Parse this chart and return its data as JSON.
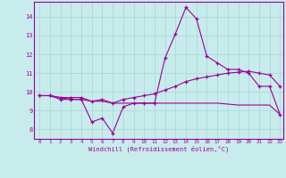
{
  "xlabel": "Windchill (Refroidissement éolien,°C)",
  "background_color": "#c8ecec",
  "grid_color": "#aed8d8",
  "line_color": "#990099",
  "xlim": [
    -0.5,
    23.3
  ],
  "ylim": [
    7.5,
    14.8
  ],
  "yticks": [
    8,
    9,
    10,
    11,
    12,
    13,
    14
  ],
  "xticks": [
    0,
    1,
    2,
    3,
    4,
    5,
    6,
    7,
    8,
    9,
    10,
    11,
    12,
    13,
    14,
    15,
    16,
    17,
    18,
    19,
    20,
    21,
    22,
    23
  ],
  "series1": [
    9.8,
    9.8,
    9.6,
    9.6,
    9.6,
    8.4,
    8.6,
    7.8,
    9.2,
    9.4,
    9.4,
    9.4,
    11.8,
    13.1,
    14.5,
    13.9,
    11.9,
    11.55,
    11.2,
    11.2,
    11.0,
    10.3,
    10.3,
    8.8
  ],
  "series2": [
    9.8,
    9.8,
    9.7,
    9.7,
    9.7,
    9.5,
    9.6,
    9.4,
    9.6,
    9.7,
    9.8,
    9.9,
    10.1,
    10.3,
    10.55,
    10.7,
    10.8,
    10.9,
    11.0,
    11.05,
    11.1,
    11.0,
    10.9,
    10.3
  ],
  "series3": [
    9.8,
    9.8,
    9.7,
    9.6,
    9.6,
    9.5,
    9.5,
    9.4,
    9.4,
    9.4,
    9.4,
    9.4,
    9.4,
    9.4,
    9.4,
    9.4,
    9.4,
    9.4,
    9.35,
    9.3,
    9.3,
    9.3,
    9.3,
    8.8
  ]
}
